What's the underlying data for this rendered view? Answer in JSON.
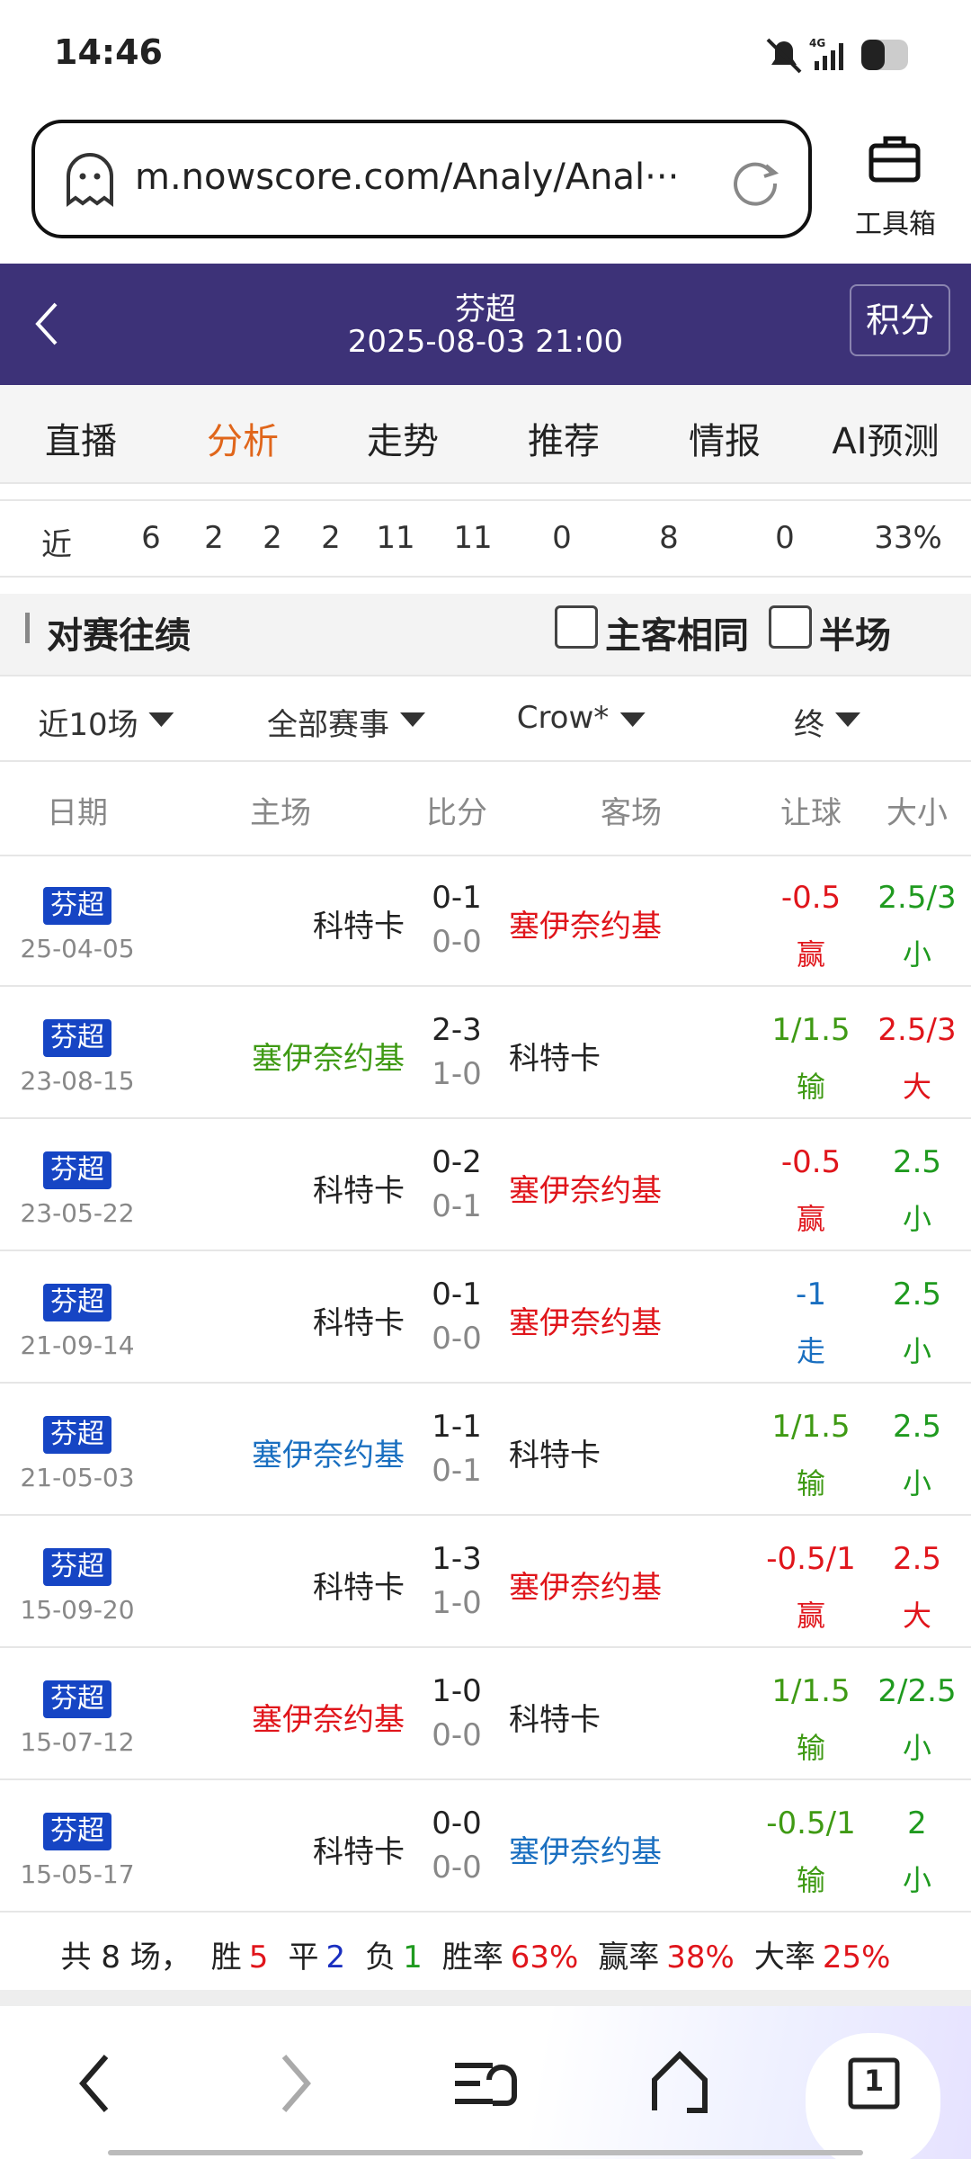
{
  "status_bar": {
    "time": "14:46"
  },
  "browser": {
    "url": "m.nowscore.com/Analy/Anal···",
    "toolbox": "工具箱"
  },
  "header": {
    "league": "芬超",
    "datetime": "2025-08-03 21:00",
    "points_button": "积分"
  },
  "tabs": {
    "items": [
      "直播",
      "分析",
      "走势",
      "推荐",
      "情报",
      "AI预测"
    ],
    "active": 1,
    "active_color": "#e0661b"
  },
  "summary_row": [
    "近",
    "6",
    "2",
    "2",
    "2",
    "11",
    "11",
    "0",
    "8",
    "0",
    "33%"
  ],
  "section": {
    "title": "对赛往绩",
    "checkboxes": [
      "主客相同",
      "半场"
    ]
  },
  "filters": [
    "近10场",
    "全部赛事",
    "Crow*",
    "终"
  ],
  "table": {
    "headers": [
      "日期",
      "主场",
      "比分",
      "客场",
      "让球",
      "大小"
    ],
    "rows": [
      {
        "league": "芬超",
        "date": "25-04-05",
        "home": "科特卡",
        "home_color": "#222222",
        "score": "0-1",
        "half": "0-0",
        "away": "塞伊奈约基",
        "away_color": "#e0151b",
        "handicap": "-0.5",
        "handicap_result": "赢",
        "handicap_color": "#e0151b",
        "total": "2.5/3",
        "total_result": "小",
        "total_color": "#1f9a1f"
      },
      {
        "league": "芬超",
        "date": "23-08-15",
        "home": "塞伊奈约基",
        "home_color": "#3f9a14",
        "score": "2-3",
        "half": "1-0",
        "away": "科特卡",
        "away_color": "#222222",
        "handicap": "1/1.5",
        "handicap_result": "输",
        "handicap_color": "#3f9a14",
        "total": "2.5/3",
        "total_result": "大",
        "total_color": "#e0151b"
      },
      {
        "league": "芬超",
        "date": "23-05-22",
        "home": "科特卡",
        "home_color": "#222222",
        "score": "0-2",
        "half": "0-1",
        "away": "塞伊奈约基",
        "away_color": "#e0151b",
        "handicap": "-0.5",
        "handicap_result": "赢",
        "handicap_color": "#e0151b",
        "total": "2.5",
        "total_result": "小",
        "total_color": "#1f9a1f"
      },
      {
        "league": "芬超",
        "date": "21-09-14",
        "home": "科特卡",
        "home_color": "#222222",
        "score": "0-1",
        "half": "0-0",
        "away": "塞伊奈约基",
        "away_color": "#e0151b",
        "handicap": "-1",
        "handicap_result": "走",
        "handicap_color": "#1a6fc0",
        "total": "2.5",
        "total_result": "小",
        "total_color": "#1f9a1f"
      },
      {
        "league": "芬超",
        "date": "21-05-03",
        "home": "塞伊奈约基",
        "home_color": "#1a6fc0",
        "score": "1-1",
        "half": "0-1",
        "away": "科特卡",
        "away_color": "#222222",
        "handicap": "1/1.5",
        "handicap_result": "输",
        "handicap_color": "#3f9a14",
        "total": "2.5",
        "total_result": "小",
        "total_color": "#1f9a1f"
      },
      {
        "league": "芬超",
        "date": "15-09-20",
        "home": "科特卡",
        "home_color": "#222222",
        "score": "1-3",
        "half": "1-0",
        "away": "塞伊奈约基",
        "away_color": "#e0151b",
        "handicap": "-0.5/1",
        "handicap_result": "赢",
        "handicap_color": "#e0151b",
        "total": "2.5",
        "total_result": "大",
        "total_color": "#e0151b"
      },
      {
        "league": "芬超",
        "date": "15-07-12",
        "home": "塞伊奈约基",
        "home_color": "#e0151b",
        "score": "1-0",
        "half": "0-0",
        "away": "科特卡",
        "away_color": "#222222",
        "handicap": "1/1.5",
        "handicap_result": "输",
        "handicap_color": "#3f9a14",
        "total": "2/2.5",
        "total_result": "小",
        "total_color": "#1f9a1f"
      },
      {
        "league": "芬超",
        "date": "15-05-17",
        "home": "科特卡",
        "home_color": "#222222",
        "score": "0-0",
        "half": "0-0",
        "away": "塞伊奈约基",
        "away_color": "#1a6fc0",
        "handicap": "-0.5/1",
        "handicap_result": "输",
        "handicap_color": "#3f9a14",
        "total": "2",
        "total_result": "小",
        "total_color": "#1f9a1f"
      }
    ]
  },
  "footer_summary": [
    {
      "text": "共 8 场，",
      "color": "#222222"
    },
    {
      "text": "胜",
      "color": "#222222"
    },
    {
      "text": "5",
      "color": "#e0151b"
    },
    {
      "text": "平",
      "color": "#222222"
    },
    {
      "text": "2",
      "color": "#1a2fc0"
    },
    {
      "text": "负",
      "color": "#222222"
    },
    {
      "text": "1",
      "color": "#1f9a1f"
    },
    {
      "text": "胜率",
      "color": "#222222"
    },
    {
      "text": "63%",
      "color": "#e0151b"
    },
    {
      "text": "赢率",
      "color": "#222222"
    },
    {
      "text": "38%",
      "color": "#e0151b"
    },
    {
      "text": "大率",
      "color": "#222222"
    },
    {
      "text": "25%",
      "color": "#e0151b"
    }
  ],
  "bottom_nav": {
    "tab_count": "1"
  }
}
